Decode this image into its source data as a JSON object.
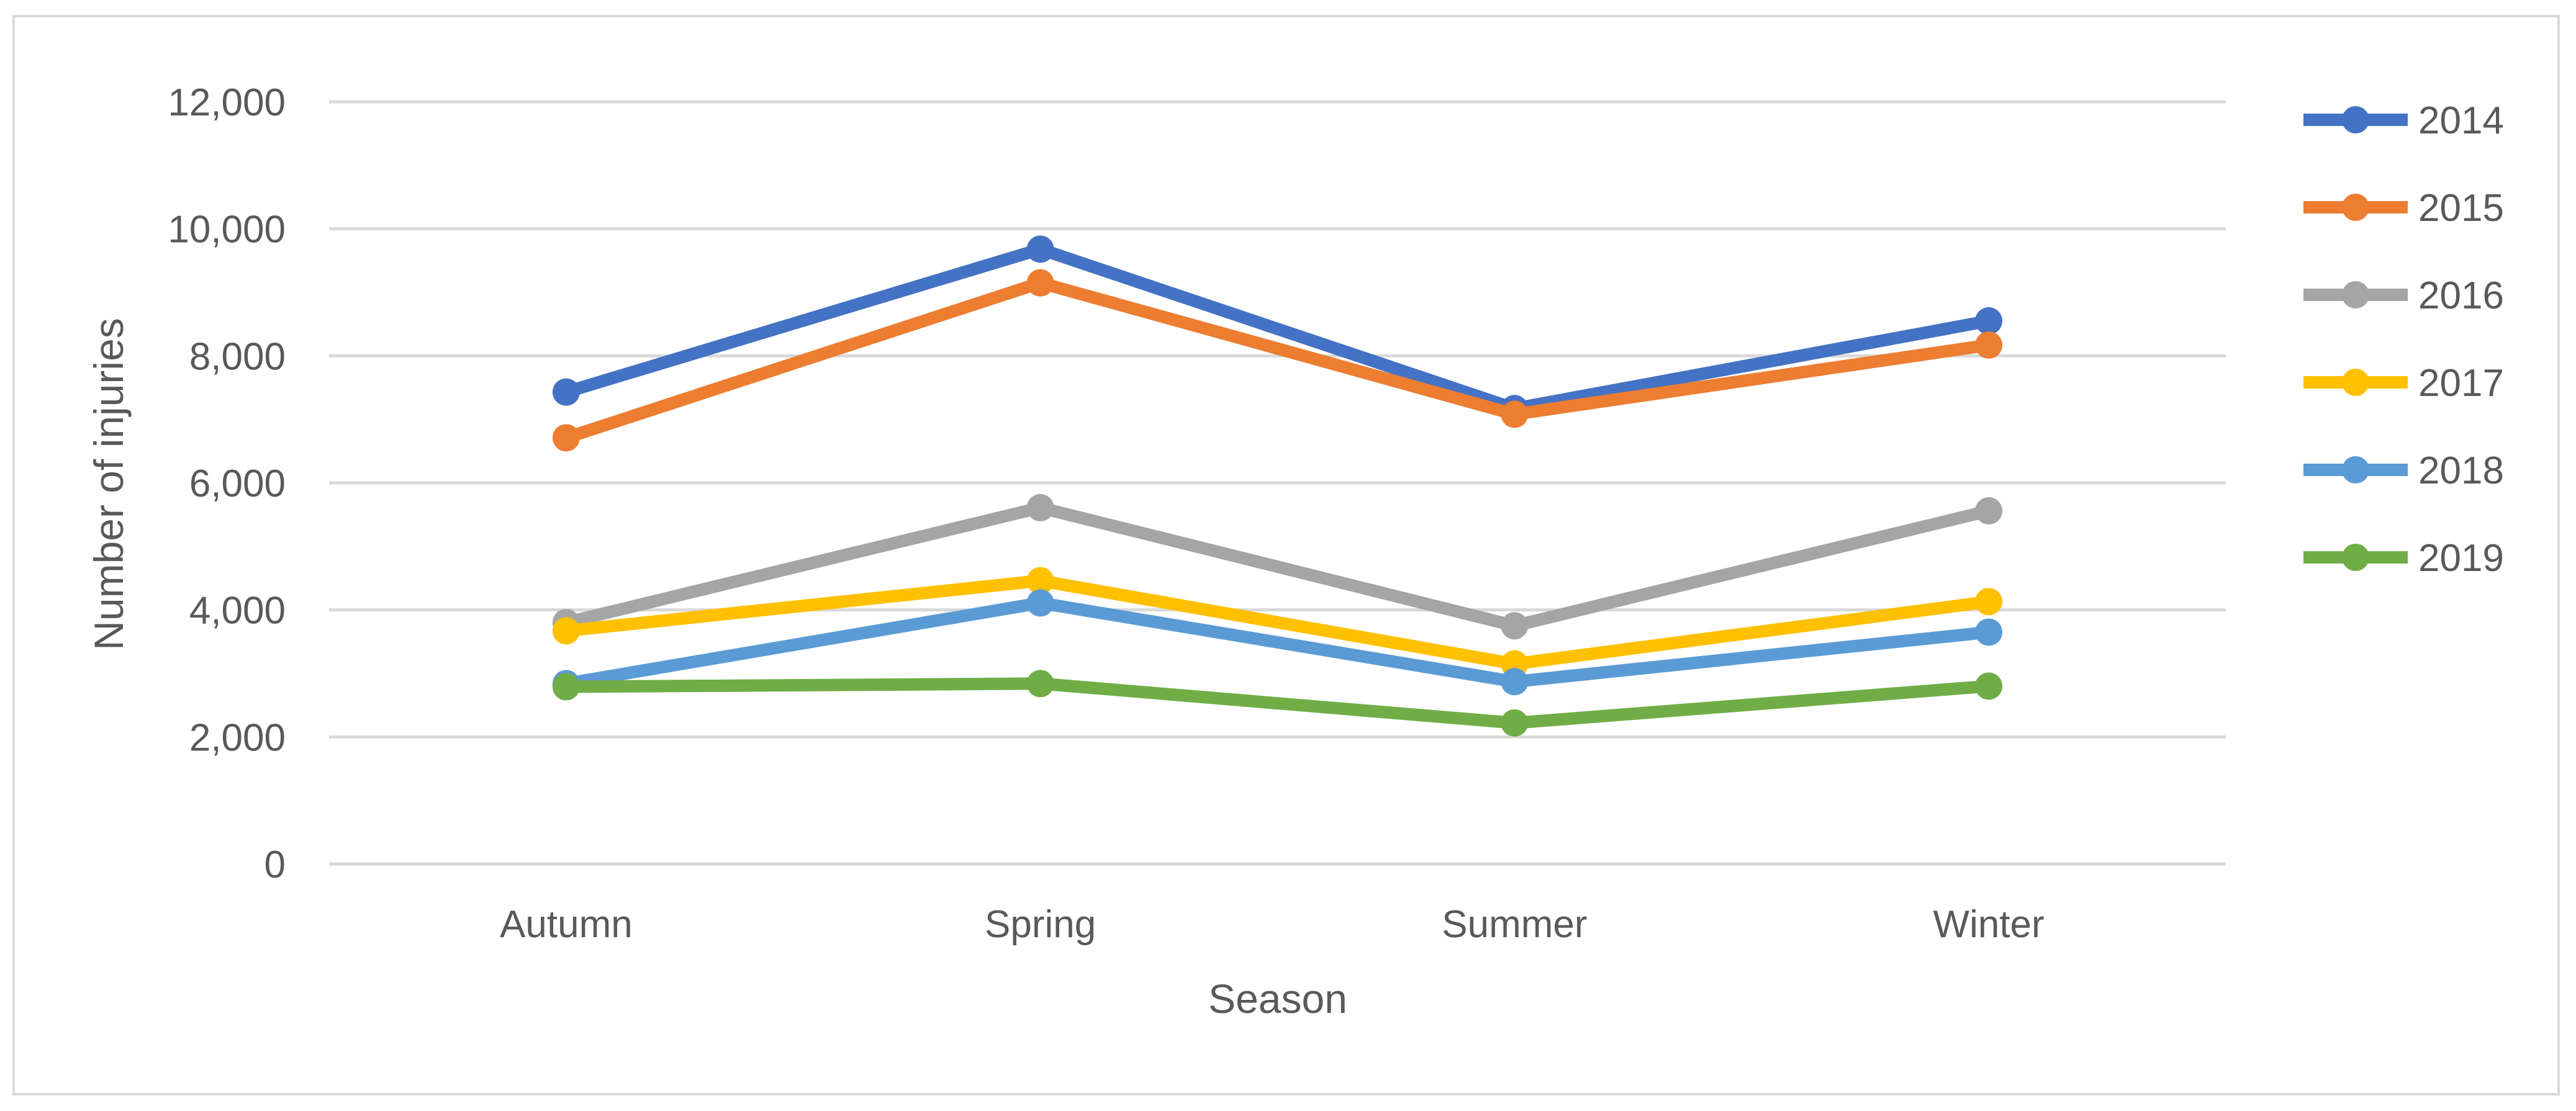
{
  "chart_data": {
    "type": "line",
    "title": "",
    "xlabel": "Season",
    "ylabel": "Number of injuries",
    "categories": [
      "Autumn",
      "Spring",
      "Summer",
      "Winter"
    ],
    "ylim": [
      0,
      12000
    ],
    "yticks": [
      0,
      2000,
      4000,
      6000,
      8000,
      10000,
      12000
    ],
    "ytick_labels": [
      "0",
      "2,000",
      "4,000",
      "6,000",
      "8,000",
      "10,000",
      "12,000"
    ],
    "grid": true,
    "legend_position": "right",
    "series": [
      {
        "name": "2014",
        "color": "#4472C4",
        "values": [
          7430,
          9680,
          7170,
          8550
        ]
      },
      {
        "name": "2015",
        "color": "#ED7D31",
        "values": [
          6710,
          9150,
          7080,
          8170
        ]
      },
      {
        "name": "2016",
        "color": "#A5A5A5",
        "values": [
          3800,
          5610,
          3750,
          5560
        ]
      },
      {
        "name": "2017",
        "color": "#FFC000",
        "values": [
          3670,
          4460,
          3150,
          4130
        ]
      },
      {
        "name": "2018",
        "color": "#5B9BD5",
        "values": [
          2840,
          4110,
          2870,
          3650
        ]
      },
      {
        "name": "2019",
        "color": "#70AD47",
        "values": [
          2790,
          2840,
          2220,
          2800
        ]
      }
    ]
  }
}
